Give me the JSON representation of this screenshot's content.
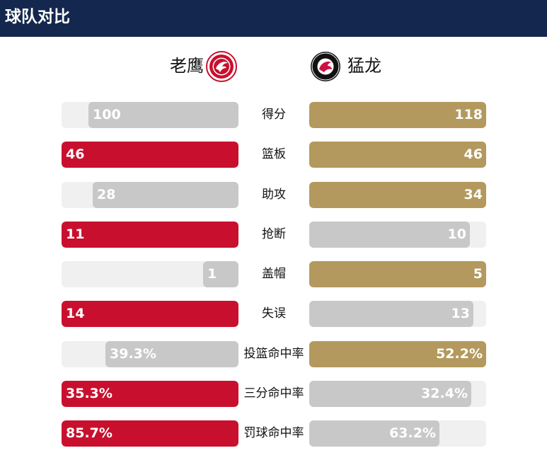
{
  "header": {
    "title": "球队对比"
  },
  "teams": {
    "home": {
      "name": "老鹰",
      "logo_icon": "hawks-logo-icon",
      "color": "#c8102e"
    },
    "away": {
      "name": "猛龙",
      "logo_icon": "raptors-logo-icon",
      "color": "#b3995d"
    }
  },
  "colors": {
    "header_bg": "#14274e",
    "home_win": "#c8102e",
    "away_win": "#b3995d",
    "lose": "#c8c8c8",
    "track": "#f0f0f0"
  },
  "stats": [
    {
      "label": "得分",
      "home": "100",
      "away": "118",
      "home_value": 100,
      "away_value": 118,
      "winner": "away"
    },
    {
      "label": "篮板",
      "home": "46",
      "away": "46",
      "home_value": 46,
      "away_value": 46,
      "winner": "both"
    },
    {
      "label": "助攻",
      "home": "28",
      "away": "34",
      "home_value": 28,
      "away_value": 34,
      "winner": "away"
    },
    {
      "label": "抢断",
      "home": "11",
      "away": "10",
      "home_value": 11,
      "away_value": 10,
      "winner": "home"
    },
    {
      "label": "盖帽",
      "home": "1",
      "away": "5",
      "home_value": 1,
      "away_value": 5,
      "winner": "away"
    },
    {
      "label": "失误",
      "home": "14",
      "away": "13",
      "home_value": 14,
      "away_value": 13,
      "winner": "home"
    },
    {
      "label": "投篮命中率",
      "home": "39.3%",
      "away": "52.2%",
      "home_value": 39.3,
      "away_value": 52.2,
      "winner": "away"
    },
    {
      "label": "三分命中率",
      "home": "35.3%",
      "away": "32.4%",
      "home_value": 35.3,
      "away_value": 32.4,
      "winner": "home"
    },
    {
      "label": "罚球命中率",
      "home": "85.7%",
      "away": "63.2%",
      "home_value": 85.7,
      "away_value": 63.2,
      "winner": "home"
    }
  ]
}
